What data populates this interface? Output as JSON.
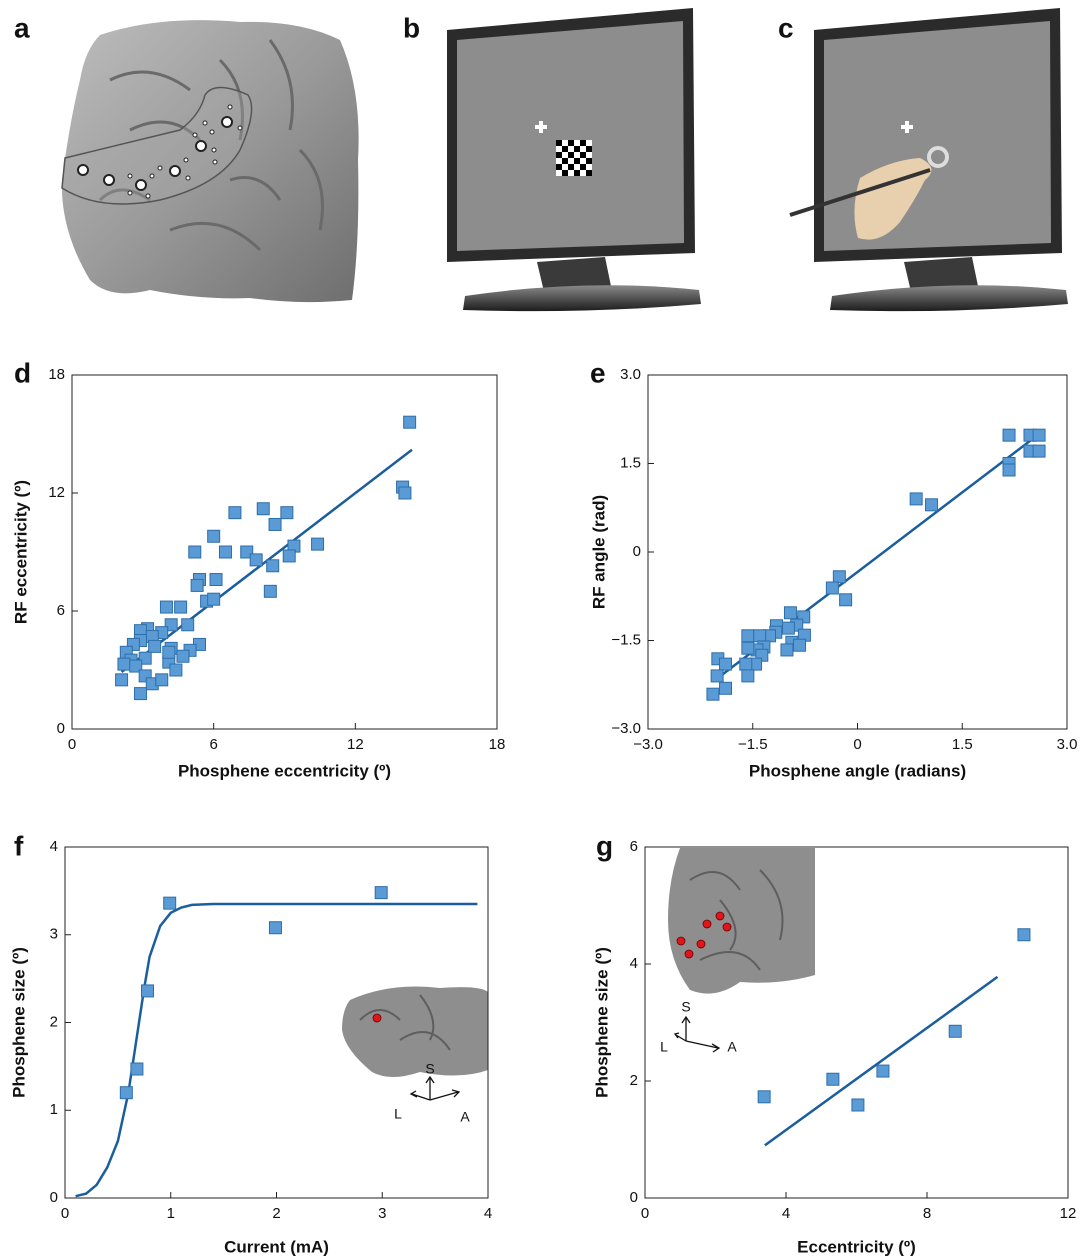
{
  "panel_labels": [
    "a",
    "b",
    "c",
    "d",
    "e",
    "f",
    "g"
  ],
  "chart_data": [
    {
      "type": "scatter",
      "xlabel": "Phosphene eccentricity (º)",
      "ylabel": "RF eccentricity (º)",
      "xlim": [
        0,
        18
      ],
      "ylim": [
        0,
        18
      ],
      "xticks": [
        0,
        6,
        12,
        18
      ],
      "yticks": [
        0,
        6,
        12,
        18
      ],
      "color": "#5b9bd5",
      "fit_color": "#1b5e9e",
      "x": [
        14.3,
        14.0,
        14.1,
        6.9,
        8.1,
        9.1,
        8.6,
        6.0,
        5.2,
        6.5,
        7.4,
        7.8,
        9.4,
        10.4,
        9.2,
        8.5,
        5.4,
        6.1,
        5.3,
        5.7,
        6.0,
        8.4,
        4.0,
        4.6,
        3.2,
        2.9,
        4.9,
        4.2,
        3.8,
        3.4,
        2.9,
        2.6,
        2.3,
        3.5,
        4.2,
        2.5,
        3.1,
        5.4,
        5.0,
        4.7,
        2.2,
        2.7,
        4.1,
        4.4,
        4.1,
        2.1,
        3.1,
        3.4,
        3.8,
        2.9
      ],
      "y": [
        15.6,
        12.3,
        12.0,
        11.0,
        11.2,
        11.0,
        10.4,
        9.8,
        9.0,
        9.0,
        9.0,
        8.6,
        9.3,
        9.4,
        8.8,
        8.3,
        7.6,
        7.6,
        7.3,
        6.5,
        6.6,
        7.0,
        6.2,
        6.2,
        5.1,
        5.0,
        5.3,
        5.3,
        4.9,
        4.7,
        4.5,
        4.3,
        3.9,
        4.2,
        4.1,
        3.5,
        3.6,
        4.3,
        4.0,
        3.7,
        3.3,
        3.2,
        3.4,
        3.0,
        3.9,
        2.5,
        2.7,
        2.3,
        2.5,
        1.8
      ],
      "fit": {
        "x": [
          2.1,
          14.4
        ],
        "y": [
          2.9,
          14.2
        ]
      }
    },
    {
      "type": "scatter",
      "xlabel": "Phosphene angle (radians)",
      "ylabel": "RF angle (rad)",
      "xlim": [
        -3,
        3
      ],
      "ylim": [
        -3,
        3
      ],
      "xticks": [
        {
          "value": -3,
          "label": "−3.0"
        },
        {
          "value": -1.5,
          "label": "−1.5"
        },
        0,
        {
          "value": 1.5,
          "label": "1.5"
        },
        {
          "value": 3,
          "label": "3.0"
        }
      ],
      "yticks": [
        {
          "value": -3,
          "label": "−3.0"
        },
        {
          "value": -1.5,
          "label": "−1.5"
        },
        0,
        {
          "value": 1.5,
          "label": "1.5"
        },
        {
          "value": 3,
          "label": "3.0"
        }
      ],
      "color": "#5b9bd5",
      "fit_color": "#1b5e9e",
      "x": [
        2.17,
        2.47,
        2.6,
        2.17,
        2.17,
        2.47,
        2.6,
        0.84,
        1.06,
        -0.26,
        -0.36,
        -0.17,
        -0.96,
        -0.77,
        -0.87,
        -0.99,
        -1.16,
        -1.17,
        -1.26,
        -1.57,
        -1.4,
        -0.76,
        -0.94,
        -0.83,
        -1.01,
        -1.34,
        -1.44,
        -1.57,
        -1.37,
        -1.46,
        -1.6,
        -1.57,
        -2.0,
        -1.89,
        -2.01,
        -1.89,
        -2.07
      ],
      "y": [
        1.98,
        1.98,
        1.98,
        1.5,
        1.39,
        1.71,
        1.71,
        0.9,
        0.8,
        -0.42,
        -0.61,
        -0.81,
        -1.03,
        -1.1,
        -1.24,
        -1.29,
        -1.25,
        -1.36,
        -1.42,
        -1.42,
        -1.42,
        -1.41,
        -1.53,
        -1.58,
        -1.66,
        -1.61,
        -1.66,
        -1.63,
        -1.75,
        -1.9,
        -1.9,
        -2.1,
        -1.81,
        -1.9,
        -2.1,
        -2.31,
        -2.41
      ],
      "fit": {
        "x": [
          -2.07,
          2.6
        ],
        "y": [
          -2.2,
          2.0
        ]
      }
    },
    {
      "type": "scatter",
      "xlabel": "Current (mA)",
      "ylabel": "Phosphene size (º)",
      "xlim": [
        0,
        4
      ],
      "ylim": [
        0,
        4
      ],
      "xticks": [
        0,
        1,
        2,
        3,
        4
      ],
      "yticks": [
        0,
        1,
        2,
        3,
        4
      ],
      "color": "#5b9bd5",
      "fit_color": "#1b5e9e",
      "x": [
        0.99,
        1.99,
        2.99,
        0.78,
        0.68,
        0.58
      ],
      "y": [
        3.36,
        3.08,
        3.48,
        2.36,
        1.47,
        1.2
      ],
      "fit": {
        "x": [
          0.1,
          0.2,
          0.3,
          0.4,
          0.5,
          0.6,
          0.7,
          0.75,
          0.8,
          0.9,
          1.0,
          1.1,
          1.2,
          1.4,
          2.0,
          3.9
        ],
        "y": [
          0.02,
          0.05,
          0.15,
          0.35,
          0.65,
          1.2,
          2.0,
          2.4,
          2.75,
          3.1,
          3.25,
          3.31,
          3.34,
          3.35,
          3.35,
          3.35
        ]
      },
      "inset_labels": [
        "S",
        "L",
        "A"
      ]
    },
    {
      "type": "scatter",
      "xlabel": "Eccentricity (º)",
      "ylabel": "Phosphene size (º)",
      "xlim": [
        0,
        12
      ],
      "ylim": [
        0,
        6
      ],
      "xticks": [
        0,
        4,
        8,
        12
      ],
      "yticks": [
        0,
        2,
        4,
        6
      ],
      "color": "#5b9bd5",
      "fit_color": "#1b5e9e",
      "x": [
        10.75,
        8.8,
        6.75,
        5.33,
        6.04,
        3.38
      ],
      "y": [
        4.5,
        2.85,
        2.17,
        2.03,
        1.59,
        1.73
      ],
      "fit": {
        "x": [
          3.4,
          10.0
        ],
        "y": [
          0.9,
          3.78
        ]
      },
      "inset_labels": [
        "S",
        "L",
        "A"
      ]
    }
  ]
}
